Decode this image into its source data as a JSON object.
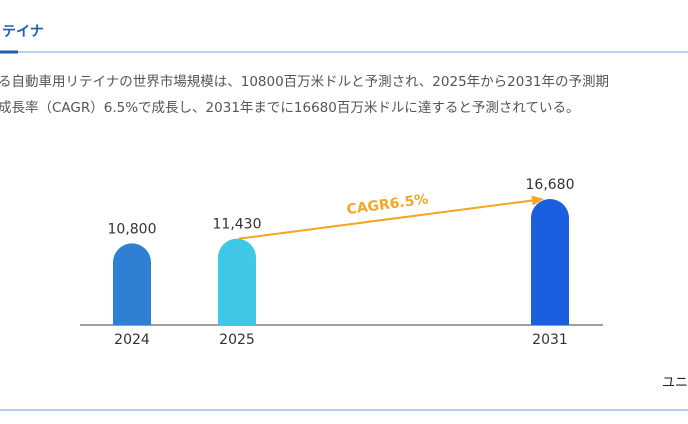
{
  "header": {
    "title": "テイナ"
  },
  "paragraph": [
    "る自動車用リテイナの世界市場規模は、10800百万米ドルと予測され、2025年から2031年の予測期",
    "成長率（CAGR）6.5%で成長し、2031年までに16680百万米ドルに達すると予測されている。"
  ],
  "chart_data": {
    "type": "bar",
    "categories": [
      "2024",
      "2025",
      "2031"
    ],
    "values": [
      10800,
      11430,
      16680
    ],
    "value_labels": [
      "10,800",
      "11,430",
      "16,680"
    ],
    "colors": [
      "#2f7fd4",
      "#3ec8e6",
      "#1a5fe0"
    ],
    "annotation": "CAGR6.5%"
  },
  "footer": "ユニ"
}
